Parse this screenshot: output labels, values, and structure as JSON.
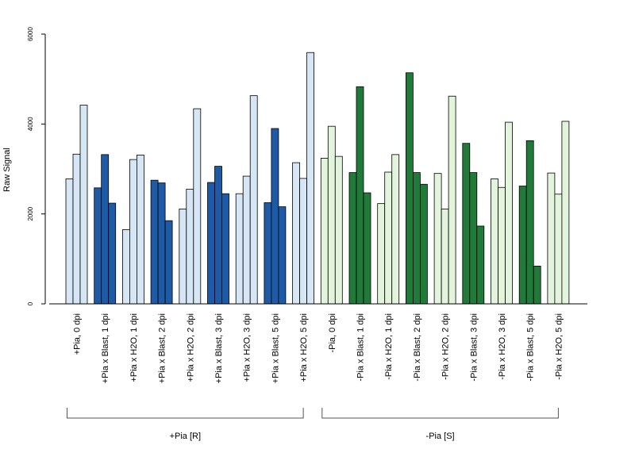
{
  "chart_data": {
    "type": "bar",
    "title": "",
    "ylabel": "Raw Signal",
    "xlabel": "",
    "ylim": [
      0,
      6000
    ],
    "yticks": [
      0,
      2000,
      4000,
      6000
    ],
    "yticks_labels": [
      "0",
      "2000",
      "4000",
      "6000"
    ],
    "grid": false,
    "legend": "none",
    "categories": [
      {
        "label": "+Pia, 0 dpi",
        "values": [
          2780,
          3330,
          4420
        ],
        "color": "#d6e6f5"
      },
      {
        "label": "+Pia x Blast, 1 dpi",
        "values": [
          2580,
          3320,
          2240
        ],
        "color": "#1f5aa6"
      },
      {
        "label": "+Pia x H2O, 1 dpi",
        "values": [
          1650,
          3210,
          3310
        ],
        "color": "#d6e6f5"
      },
      {
        "label": "+Pia x Blast, 2 dpi",
        "values": [
          2750,
          2690,
          1850
        ],
        "color": "#1f5aa6"
      },
      {
        "label": "+Pia x H2O, 2 dpi",
        "values": [
          2110,
          2550,
          4340
        ],
        "color": "#d6e6f5"
      },
      {
        "label": "+Pia x Blast, 3 dpi",
        "values": [
          2700,
          3060,
          2450
        ],
        "color": "#1f5aa6"
      },
      {
        "label": "+Pia x H2O, 3 dpi",
        "values": [
          2450,
          2840,
          4630
        ],
        "color": "#d6e6f5"
      },
      {
        "label": "+Pia x Blast, 5 dpi",
        "values": [
          2250,
          3900,
          2160
        ],
        "color": "#1f5aa6"
      },
      {
        "label": "+Pia x H2O, 5 dpi",
        "values": [
          3140,
          2790,
          5590
        ],
        "color": "#d6e6f5"
      },
      {
        "label": "-Pia, 0 dpi",
        "values": [
          3240,
          3950,
          3280
        ],
        "color": "#e3f4dd"
      },
      {
        "label": "-Pia x Blast, 1 dpi",
        "values": [
          2920,
          4830,
          2470
        ],
        "color": "#217a3a"
      },
      {
        "label": "-Pia x H2O, 1 dpi",
        "values": [
          2230,
          2930,
          3320
        ],
        "color": "#e3f4dd"
      },
      {
        "label": "-Pia x Blast, 2 dpi",
        "values": [
          5140,
          2920,
          2660
        ],
        "color": "#217a3a"
      },
      {
        "label": "-Pia x H2O, 2 dpi",
        "values": [
          2900,
          2110,
          4620
        ],
        "color": "#e3f4dd"
      },
      {
        "label": "-Pia x Blast, 3 dpi",
        "values": [
          3570,
          2920,
          1730
        ],
        "color": "#217a3a"
      },
      {
        "label": "-Pia x H2O, 3 dpi",
        "values": [
          2780,
          2590,
          4040
        ],
        "color": "#e3f4dd"
      },
      {
        "label": "-Pia x Blast, 5 dpi",
        "values": [
          2620,
          3630,
          840
        ],
        "color": "#217a3a"
      },
      {
        "label": "-Pia x H2O, 5 dpi",
        "values": [
          2910,
          2440,
          4060
        ],
        "color": "#e3f4dd"
      }
    ],
    "groups": [
      {
        "label": "+Pia [R]",
        "from": 0,
        "to": 8
      },
      {
        "label": "-Pia [S]",
        "from": 9,
        "to": 17
      }
    ]
  }
}
